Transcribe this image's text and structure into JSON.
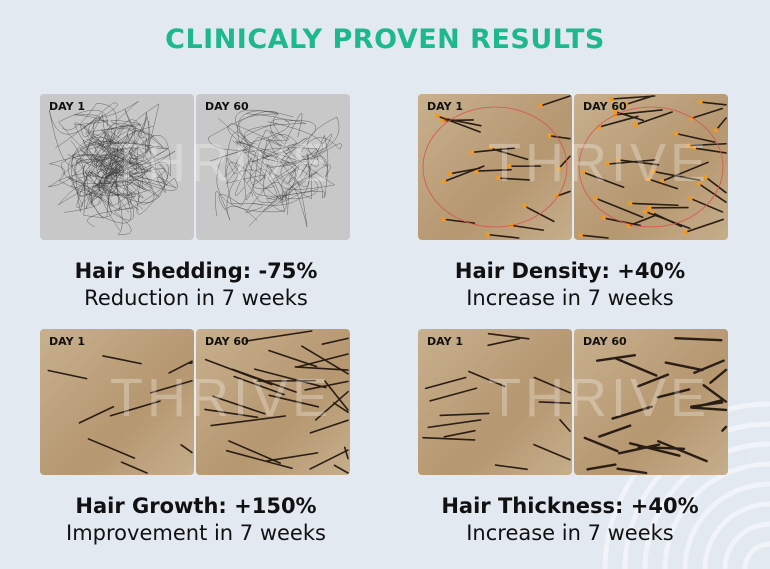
{
  "heading": "CLINICALY PROVEN RESULTS",
  "watermark": "THRIVE",
  "colors": {
    "heading": "#1db88c",
    "background": "#e3e9f1"
  },
  "results": [
    {
      "before_label": "DAY 1",
      "after_label": "DAY 60",
      "title": "Hair Shedding:  -75%",
      "subtitle": "Reduction in 7 weeks"
    },
    {
      "before_label": "DAY 1",
      "after_label": "DAY 60",
      "title": "Hair Density: +40%",
      "subtitle": "Increase in 7 weeks"
    },
    {
      "before_label": "DAY 1",
      "after_label": "DAY 60",
      "title": "Hair Growth: +150%",
      "subtitle": "Improvement in 7 weeks"
    },
    {
      "before_label": "DAY 1",
      "after_label": "DAY 60",
      "title": "Hair Thickness: +40%",
      "subtitle": "Increase in 7 weeks"
    }
  ]
}
